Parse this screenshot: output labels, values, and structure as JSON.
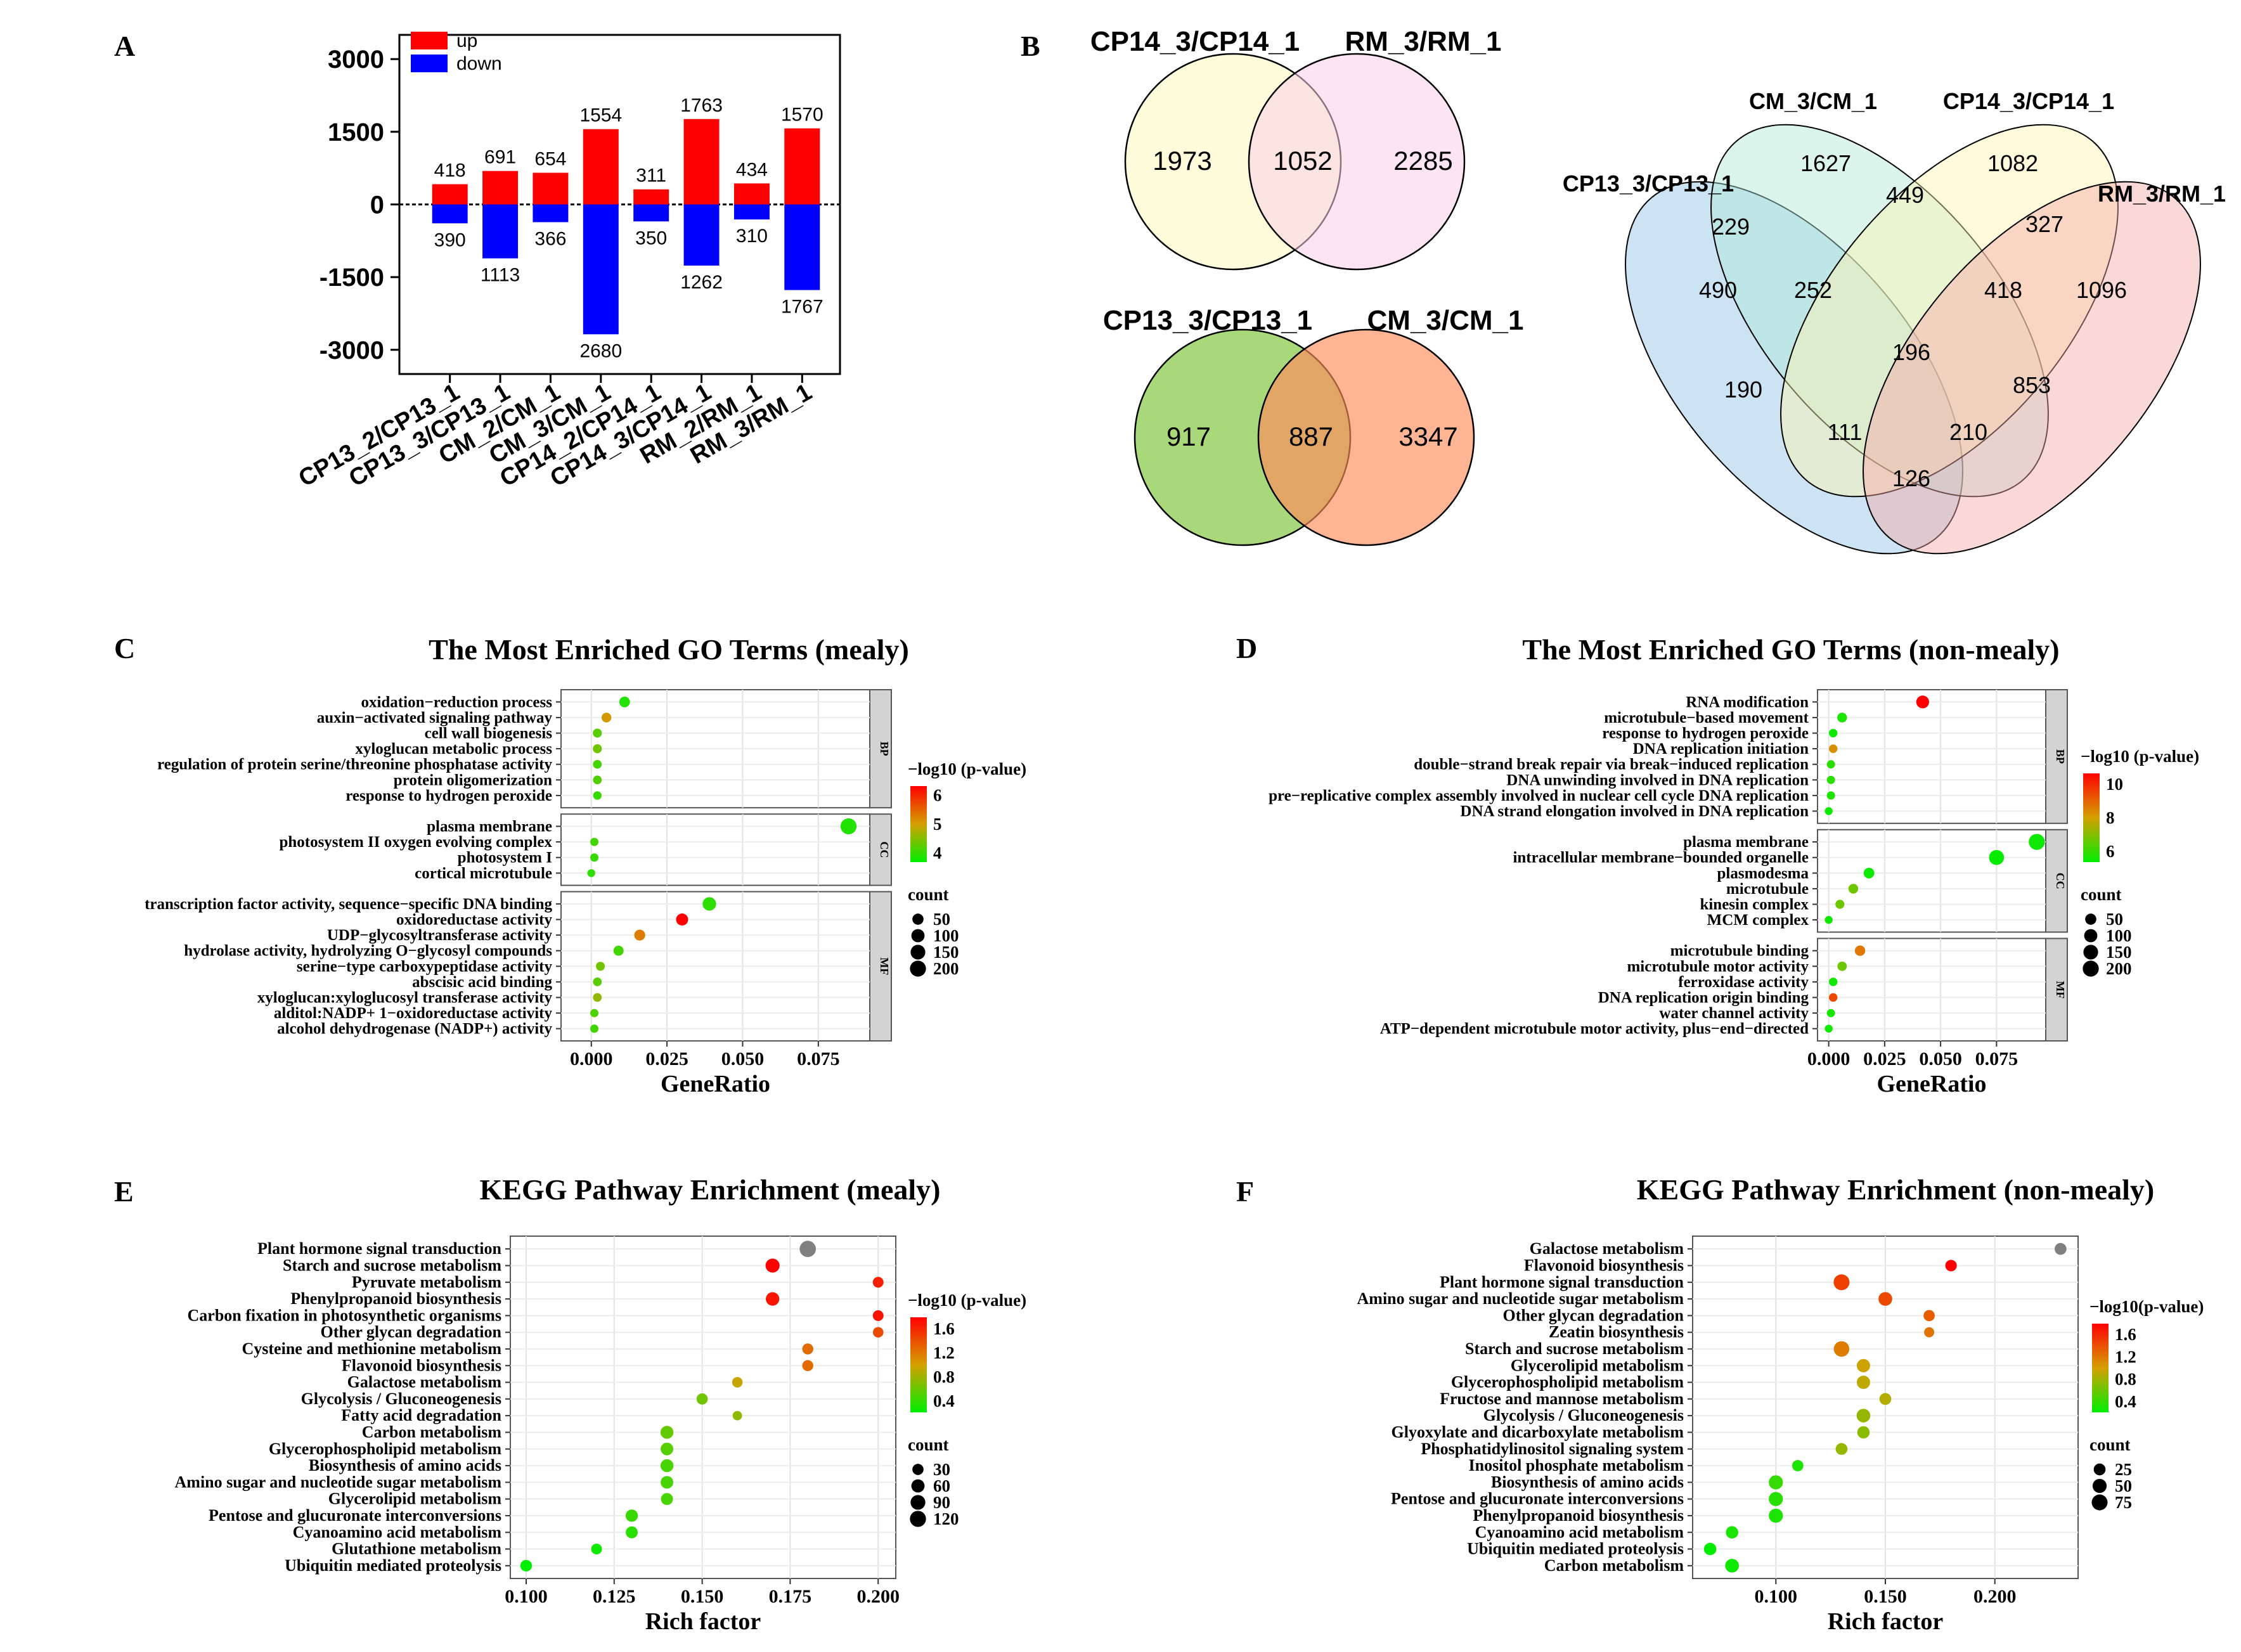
{
  "panel_labels": {
    "A": "A",
    "B": "B",
    "C": "C",
    "D": "D",
    "E": "E",
    "F": "F"
  },
  "colors": {
    "up": "#ff0000",
    "down": "#0000ff",
    "gradient_low": "#00ee00",
    "gradient_mid": "#d4a000",
    "gradient_high": "#ff0000",
    "strip": "#d3d3d3"
  },
  "chart_data": [
    {
      "panel": "A",
      "type": "bar",
      "categories": [
        "CP13_2/CP13_1",
        "CP13_3/CP13_1",
        "CM_2/CM_1",
        "CM_3/CM_1",
        "CP14_2/CP14_1",
        "CP14_3/CP14_1",
        "RM_2/RM_1",
        "RM_3/RM_1"
      ],
      "series": [
        {
          "name": "up",
          "values": [
            418,
            691,
            654,
            1554,
            311,
            1763,
            434,
            1570
          ]
        },
        {
          "name": "down",
          "values": [
            -390,
            -1113,
            -366,
            -2680,
            -350,
            -1262,
            -310,
            -1767
          ]
        }
      ],
      "up_labels": [
        "418",
        "691",
        "654",
        "1554",
        "311",
        "1763",
        "434",
        "1570"
      ],
      "down_labels": [
        "390",
        "1113",
        "366",
        "2680",
        "350",
        "1262",
        "310",
        "1767"
      ],
      "yticks": [
        "3000",
        "1500",
        "0",
        "-1500",
        "-3000"
      ],
      "ylim": [
        -3500,
        3500
      ],
      "legend": {
        "up": "up",
        "down": "down"
      }
    },
    {
      "panel": "B",
      "type": "venn",
      "two_set": [
        {
          "sets": [
            "CP14_3/CP14_1",
            "RM_3/RM_1"
          ],
          "only_left": "1973",
          "overlap": "1052",
          "only_right": "2285"
        },
        {
          "sets": [
            "CP13_3/CP13_1",
            "CM_3/CM_1"
          ],
          "only_left": "917",
          "overlap": "887",
          "only_right": "3347"
        }
      ],
      "four_set": {
        "sets": [
          "CP13_3/CP13_1",
          "CM_3/CM_1",
          "CP14_3/CP14_1",
          "RM_3/RM_1"
        ],
        "regions": [
          "1627",
          "1082",
          "449",
          "229",
          "327",
          "490",
          "252",
          "418",
          "1096",
          "196",
          "190",
          "853",
          "111",
          "210",
          "126"
        ]
      }
    },
    {
      "panel": "C",
      "type": "scatter",
      "title": "The Most Enriched GO Terms (mealy)",
      "xlabel": "GeneRatio",
      "xlim": [
        -0.01,
        0.092
      ],
      "xticks": [
        0,
        0.025,
        0.05,
        0.075
      ],
      "xtick_labels": [
        "0.000",
        "0.025",
        "0.050",
        "0.075"
      ],
      "color_title": "−log10 (p-value)",
      "color_ticks": [
        "6",
        "5",
        "4"
      ],
      "color_range": [
        3.2,
        7
      ],
      "size_title": "count",
      "size_labels": [
        "50",
        "100",
        "150",
        "200"
      ],
      "size_range": [
        0,
        220
      ],
      "facets": [
        {
          "name": "BP",
          "terms": [
            {
              "label": "oxidation−reduction process",
              "x": 0.011,
              "p": 3.5,
              "n": 40
            },
            {
              "label": "auxin−activated signaling pathway",
              "x": 0.005,
              "p": 5.2,
              "n": 25
            },
            {
              "label": "cell wall biogenesis",
              "x": 0.002,
              "p": 4.0,
              "n": 15
            },
            {
              "label": "xyloglucan metabolic process",
              "x": 0.002,
              "p": 4.2,
              "n": 15
            },
            {
              "label": "regulation of protein serine/threonine phosphatase activity",
              "x": 0.002,
              "p": 3.8,
              "n": 12
            },
            {
              "label": "protein oligomerization",
              "x": 0.002,
              "p": 3.9,
              "n": 12
            },
            {
              "label": "response to hydrogen peroxide",
              "x": 0.002,
              "p": 3.7,
              "n": 10
            }
          ]
        },
        {
          "name": "CC",
          "terms": [
            {
              "label": "plasma membrane",
              "x": 0.085,
              "p": 3.5,
              "n": 200
            },
            {
              "label": "photosystem II oxygen evolving complex",
              "x": 0.001,
              "p": 3.8,
              "n": 8
            },
            {
              "label": "photosystem I",
              "x": 0.001,
              "p": 3.7,
              "n": 8
            },
            {
              "label": "cortical microtubule",
              "x": 0.0,
              "p": 3.6,
              "n": 5
            }
          ]
        },
        {
          "name": "MF",
          "terms": [
            {
              "label": "transcription factor activity, sequence−specific DNA binding",
              "x": 0.039,
              "p": 3.6,
              "n": 110
            },
            {
              "label": "oxidoreductase activity",
              "x": 0.03,
              "p": 7.0,
              "n": 70
            },
            {
              "label": "UDP−glycosyltransferase activity",
              "x": 0.016,
              "p": 5.5,
              "n": 45
            },
            {
              "label": "hydrolase activity, hydrolyzing O−glycosyl compounds",
              "x": 0.009,
              "p": 3.8,
              "n": 30
            },
            {
              "label": "serine−type carboxypeptidase activity",
              "x": 0.003,
              "p": 4.2,
              "n": 15
            },
            {
              "label": "abscisic acid binding",
              "x": 0.002,
              "p": 4.0,
              "n": 12
            },
            {
              "label": "xyloglucan:xyloglucosyl transferase activity",
              "x": 0.002,
              "p": 4.5,
              "n": 12
            },
            {
              "label": "alditol:NADP+ 1−oxidoreductase activity",
              "x": 0.001,
              "p": 3.9,
              "n": 8
            },
            {
              "label": "alcohol dehydrogenase (NADP+) activity",
              "x": 0.001,
              "p": 3.8,
              "n": 8
            }
          ]
        }
      ]
    },
    {
      "panel": "D",
      "type": "scatter",
      "title": "The Most Enriched GO Terms (non-mealy)",
      "xlabel": "GeneRatio",
      "xlim": [
        -0.005,
        0.097
      ],
      "xticks": [
        0,
        0.025,
        0.05,
        0.075
      ],
      "xtick_labels": [
        "0.000",
        "0.025",
        "0.050",
        "0.075"
      ],
      "color_title": "−log10 (p-value)",
      "color_ticks": [
        "10",
        "8",
        "6"
      ],
      "color_range": [
        4.8,
        11.5
      ],
      "size_title": "count",
      "size_labels": [
        "50",
        "100",
        "150",
        "200"
      ],
      "size_range": [
        0,
        220
      ],
      "facets": [
        {
          "name": "BP",
          "terms": [
            {
              "label": "RNA modification",
              "x": 0.042,
              "p": 11.5,
              "n": 90
            },
            {
              "label": "microtubule−based movement",
              "x": 0.006,
              "p": 5.2,
              "n": 25
            },
            {
              "label": "response to hydrogen peroxide",
              "x": 0.002,
              "p": 5.0,
              "n": 10
            },
            {
              "label": "DNA replication initiation",
              "x": 0.002,
              "p": 8.5,
              "n": 10
            },
            {
              "label": "double−strand break repair via break−induced replication",
              "x": 0.001,
              "p": 5.5,
              "n": 8
            },
            {
              "label": "DNA unwinding involved in DNA replication",
              "x": 0.001,
              "p": 5.5,
              "n": 8
            },
            {
              "label": "pre−replicative complex assembly involved in nuclear cell cycle DNA replication",
              "x": 0.001,
              "p": 5.3,
              "n": 8
            },
            {
              "label": "DNA strand elongation involved in DNA replication",
              "x": 0.0,
              "p": 5.0,
              "n": 5
            }
          ]
        },
        {
          "name": "CC",
          "terms": [
            {
              "label": "plasma membrane",
              "x": 0.093,
              "p": 5.0,
              "n": 200
            },
            {
              "label": "intracellular membrane−bounded organelle",
              "x": 0.075,
              "p": 4.9,
              "n": 160
            },
            {
              "label": "plasmodesma",
              "x": 0.018,
              "p": 5.0,
              "n": 40
            },
            {
              "label": "microtubule",
              "x": 0.011,
              "p": 6.5,
              "n": 25
            },
            {
              "label": "kinesin complex",
              "x": 0.005,
              "p": 6.5,
              "n": 15
            },
            {
              "label": "MCM complex",
              "x": 0.0,
              "p": 5.0,
              "n": 5
            }
          ]
        },
        {
          "name": "MF",
          "terms": [
            {
              "label": "microtubule binding",
              "x": 0.014,
              "p": 9.0,
              "n": 35
            },
            {
              "label": "microtubule motor activity",
              "x": 0.006,
              "p": 6.5,
              "n": 20
            },
            {
              "label": "ferroxidase activity",
              "x": 0.002,
              "p": 5.0,
              "n": 10
            },
            {
              "label": "DNA replication origin binding",
              "x": 0.002,
              "p": 10.0,
              "n": 10
            },
            {
              "label": "water channel activity",
              "x": 0.001,
              "p": 5.2,
              "n": 8
            },
            {
              "label": "ATP−dependent microtubule motor activity, plus−end−directed",
              "x": 0.0,
              "p": 5.0,
              "n": 5
            }
          ]
        }
      ]
    },
    {
      "panel": "E",
      "type": "scatter",
      "title": "KEGG Pathway Enrichment (mealy)",
      "xlabel": "Rich factor",
      "xlim": [
        0.0955,
        0.205
      ],
      "xticks": [
        0.1,
        0.125,
        0.15,
        0.175,
        0.2
      ],
      "xtick_labels": [
        "0.100",
        "0.125",
        "0.150",
        "0.175",
        "0.200"
      ],
      "color_title": "−log10 (p-value)",
      "color_ticks": [
        "1.6",
        "1.2",
        "0.8",
        "0.4"
      ],
      "color_range": [
        0.2,
        1.7
      ],
      "size_title": "count",
      "size_labels": [
        "30",
        "60",
        "90",
        "120"
      ],
      "size_range": [
        0,
        130
      ],
      "terms": [
        {
          "label": "Plant hormone signal transduction",
          "x": 0.18,
          "p": null,
          "n": 125
        },
        {
          "label": "Starch and sucrose metabolism",
          "x": 0.17,
          "p": 1.7,
          "n": 75
        },
        {
          "label": "Pyruvate metabolism",
          "x": 0.2,
          "p": 1.55,
          "n": 25
        },
        {
          "label": "Phenylpropanoid biosynthesis",
          "x": 0.17,
          "p": 1.6,
          "n": 65
        },
        {
          "label": "Carbon fixation in photosynthetic organisms",
          "x": 0.2,
          "p": 1.6,
          "n": 25
        },
        {
          "label": "Other glycan degradation",
          "x": 0.2,
          "p": 1.35,
          "n": 22
        },
        {
          "label": "Cysteine and methionine metabolism",
          "x": 0.18,
          "p": 1.2,
          "n": 28
        },
        {
          "label": "Flavonoid biosynthesis",
          "x": 0.18,
          "p": 1.2,
          "n": 28
        },
        {
          "label": "Galactose metabolism",
          "x": 0.16,
          "p": 0.9,
          "n": 22
        },
        {
          "label": "Glycolysis / Gluconeogenesis",
          "x": 0.15,
          "p": 0.6,
          "n": 30
        },
        {
          "label": "Fatty acid degradation",
          "x": 0.16,
          "p": 0.7,
          "n": 12
        },
        {
          "label": "Carbon metabolism",
          "x": 0.14,
          "p": 0.55,
          "n": 55
        },
        {
          "label": "Glycerophospholipid metabolism",
          "x": 0.14,
          "p": 0.5,
          "n": 50
        },
        {
          "label": "Biosynthesis of amino acids",
          "x": 0.14,
          "p": 0.45,
          "n": 55
        },
        {
          "label": "Amino sugar and nucleotide sugar metabolism",
          "x": 0.14,
          "p": 0.45,
          "n": 50
        },
        {
          "label": "Glycerolipid metabolism",
          "x": 0.14,
          "p": 0.45,
          "n": 40
        },
        {
          "label": "Pentose and glucuronate interconversions",
          "x": 0.13,
          "p": 0.4,
          "n": 45
        },
        {
          "label": "Cyanoamino acid metabolism",
          "x": 0.13,
          "p": 0.35,
          "n": 40
        },
        {
          "label": "Glutathione metabolism",
          "x": 0.12,
          "p": 0.25,
          "n": 25
        },
        {
          "label": "Ubiquitin mediated proteolysis",
          "x": 0.1,
          "p": 0.2,
          "n": 35
        }
      ]
    },
    {
      "panel": "F",
      "type": "scatter",
      "title": "KEGG Pathway Enrichment (non-mealy)",
      "xlabel": "Rich factor",
      "xlim": [
        0.062,
        0.238
      ],
      "xticks": [
        0.1,
        0.15,
        0.2
      ],
      "xtick_labels": [
        "0.100",
        "0.150",
        "0.200"
      ],
      "color_title": "−log10(p-value)",
      "color_ticks": [
        "1.6",
        "1.2",
        "0.8",
        "0.4"
      ],
      "color_range": [
        0.2,
        1.75
      ],
      "size_title": "count",
      "size_labels": [
        "25",
        "50",
        "75"
      ],
      "size_range": [
        0,
        85
      ],
      "terms": [
        {
          "label": "Galactose metabolism",
          "x": 0.23,
          "p": null,
          "n": 25
        },
        {
          "label": "Flavonoid biosynthesis",
          "x": 0.18,
          "p": 1.75,
          "n": 22
        },
        {
          "label": "Plant hormone signal transduction",
          "x": 0.13,
          "p": 1.45,
          "n": 75
        },
        {
          "label": "Amino sugar and nucleotide sugar metabolism",
          "x": 0.15,
          "p": 1.4,
          "n": 45
        },
        {
          "label": "Other glycan degradation",
          "x": 0.17,
          "p": 1.3,
          "n": 20
        },
        {
          "label": "Zeatin biosynthesis",
          "x": 0.17,
          "p": 1.2,
          "n": 12
        },
        {
          "label": "Starch and sucrose metabolism",
          "x": 0.13,
          "p": 1.15,
          "n": 70
        },
        {
          "label": "Glycerolipid metabolism",
          "x": 0.14,
          "p": 0.95,
          "n": 40
        },
        {
          "label": "Glycerophospholipid metabolism",
          "x": 0.14,
          "p": 0.9,
          "n": 40
        },
        {
          "label": "Fructose and mannose metabolism",
          "x": 0.15,
          "p": 0.85,
          "n": 25
        },
        {
          "label": "Glycolysis / Gluconeogenesis",
          "x": 0.14,
          "p": 0.75,
          "n": 45
        },
        {
          "label": "Glyoxylate and dicarboxylate metabolism",
          "x": 0.14,
          "p": 0.7,
          "n": 30
        },
        {
          "label": "Phosphatidylinositol signaling system",
          "x": 0.13,
          "p": 0.75,
          "n": 25
        },
        {
          "label": "Inositol phosphate metabolism",
          "x": 0.11,
          "p": 0.3,
          "n": 20
        },
        {
          "label": "Biosynthesis of amino acids",
          "x": 0.1,
          "p": 0.4,
          "n": 50
        },
        {
          "label": "Pentose and glucuronate interconversions",
          "x": 0.1,
          "p": 0.35,
          "n": 50
        },
        {
          "label": "Phenylpropanoid biosynthesis",
          "x": 0.1,
          "p": 0.3,
          "n": 50
        },
        {
          "label": "Cyanoamino acid metabolism",
          "x": 0.08,
          "p": 0.3,
          "n": 30
        },
        {
          "label": "Ubiquitin mediated proteolysis",
          "x": 0.07,
          "p": 0.2,
          "n": 30
        },
        {
          "label": "Carbon metabolism",
          "x": 0.08,
          "p": 0.25,
          "n": 45
        }
      ]
    }
  ]
}
